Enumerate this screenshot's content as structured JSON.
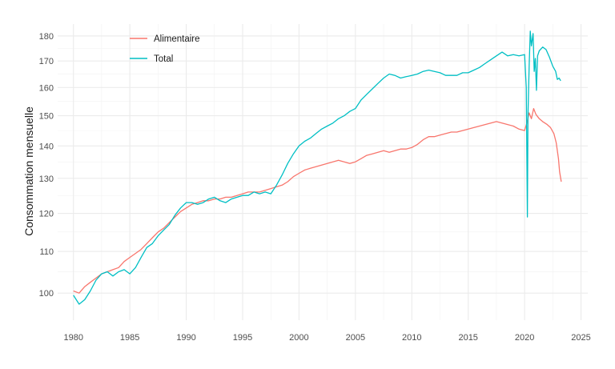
{
  "chart_data": {
    "type": "line",
    "title": "",
    "xlabel": "",
    "ylabel": "Consommation mensuelle",
    "y_scale": "log",
    "xlim": [
      1978.6,
      2025.6
    ],
    "ylim": [
      94,
      185
    ],
    "x_ticks": [
      1980,
      1985,
      1990,
      1995,
      2000,
      2005,
      2010,
      2015,
      2020,
      2025
    ],
    "y_ticks": [
      100,
      110,
      120,
      130,
      140,
      150,
      160,
      170,
      180
    ],
    "grid": true,
    "legend_position": "top-left",
    "series": [
      {
        "name": "Alimentaire",
        "color": "#F8766D",
        "points": [
          [
            1980.0,
            100.5
          ],
          [
            1980.5,
            100.0
          ],
          [
            1981.0,
            101.5
          ],
          [
            1981.5,
            102.5
          ],
          [
            1982.0,
            103.5
          ],
          [
            1982.5,
            104.5
          ],
          [
            1983.0,
            105.0
          ],
          [
            1983.5,
            105.5
          ],
          [
            1984.0,
            106.0
          ],
          [
            1984.5,
            107.5
          ],
          [
            1985.0,
            108.5
          ],
          [
            1985.5,
            109.5
          ],
          [
            1986.0,
            110.5
          ],
          [
            1986.5,
            112.0
          ],
          [
            1987.0,
            113.5
          ],
          [
            1987.5,
            115.0
          ],
          [
            1988.0,
            116.0
          ],
          [
            1988.5,
            117.5
          ],
          [
            1989.0,
            119.0
          ],
          [
            1989.5,
            120.5
          ],
          [
            1990.0,
            121.5
          ],
          [
            1990.5,
            122.5
          ],
          [
            1991.0,
            123.0
          ],
          [
            1991.5,
            123.5
          ],
          [
            1992.0,
            123.5
          ],
          [
            1992.5,
            124.0
          ],
          [
            1993.0,
            124.0
          ],
          [
            1993.5,
            124.5
          ],
          [
            1994.0,
            124.5
          ],
          [
            1994.5,
            125.0
          ],
          [
            1995.0,
            125.5
          ],
          [
            1995.5,
            126.0
          ],
          [
            1996.0,
            126.0
          ],
          [
            1996.5,
            126.0
          ],
          [
            1997.0,
            126.5
          ],
          [
            1997.5,
            127.0
          ],
          [
            1998.0,
            127.5
          ],
          [
            1998.5,
            128.0
          ],
          [
            1999.0,
            129.0
          ],
          [
            1999.5,
            130.5
          ],
          [
            2000.0,
            131.5
          ],
          [
            2000.5,
            132.5
          ],
          [
            2001.0,
            133.0
          ],
          [
            2001.5,
            133.5
          ],
          [
            2002.0,
            134.0
          ],
          [
            2002.5,
            134.5
          ],
          [
            2003.0,
            135.0
          ],
          [
            2003.5,
            135.5
          ],
          [
            2004.0,
            135.0
          ],
          [
            2004.5,
            134.5
          ],
          [
            2005.0,
            135.0
          ],
          [
            2005.5,
            136.0
          ],
          [
            2006.0,
            137.0
          ],
          [
            2006.5,
            137.5
          ],
          [
            2007.0,
            138.0
          ],
          [
            2007.5,
            138.5
          ],
          [
            2008.0,
            138.0
          ],
          [
            2008.5,
            138.5
          ],
          [
            2009.0,
            139.0
          ],
          [
            2009.5,
            139.0
          ],
          [
            2010.0,
            139.5
          ],
          [
            2010.5,
            140.5
          ],
          [
            2011.0,
            142.0
          ],
          [
            2011.5,
            143.0
          ],
          [
            2012.0,
            143.0
          ],
          [
            2012.5,
            143.5
          ],
          [
            2013.0,
            144.0
          ],
          [
            2013.5,
            144.5
          ],
          [
            2014.0,
            144.5
          ],
          [
            2014.5,
            145.0
          ],
          [
            2015.0,
            145.5
          ],
          [
            2015.5,
            146.0
          ],
          [
            2016.0,
            146.5
          ],
          [
            2016.5,
            147.0
          ],
          [
            2017.0,
            147.5
          ],
          [
            2017.5,
            148.0
          ],
          [
            2018.0,
            147.5
          ],
          [
            2018.5,
            147.0
          ],
          [
            2019.0,
            146.5
          ],
          [
            2019.5,
            145.5
          ],
          [
            2020.0,
            145.0
          ],
          [
            2020.2,
            147.5
          ],
          [
            2020.4,
            151.0
          ],
          [
            2020.6,
            149.0
          ],
          [
            2020.8,
            152.5
          ],
          [
            2021.0,
            150.5
          ],
          [
            2021.3,
            149.0
          ],
          [
            2021.6,
            148.0
          ],
          [
            2022.0,
            147.0
          ],
          [
            2022.3,
            146.0
          ],
          [
            2022.6,
            144.0
          ],
          [
            2022.8,
            141.0
          ],
          [
            2023.0,
            136.0
          ],
          [
            2023.1,
            132.0
          ],
          [
            2023.25,
            129.0
          ]
        ]
      },
      {
        "name": "Total",
        "color": "#00BFC4",
        "points": [
          [
            1980.0,
            99.5
          ],
          [
            1980.5,
            97.5
          ],
          [
            1981.0,
            98.5
          ],
          [
            1981.5,
            100.5
          ],
          [
            1982.0,
            103.0
          ],
          [
            1982.5,
            104.5
          ],
          [
            1983.0,
            105.0
          ],
          [
            1983.5,
            104.0
          ],
          [
            1984.0,
            105.0
          ],
          [
            1984.5,
            105.5
          ],
          [
            1985.0,
            104.5
          ],
          [
            1985.5,
            106.0
          ],
          [
            1986.0,
            108.5
          ],
          [
            1986.5,
            111.0
          ],
          [
            1987.0,
            112.0
          ],
          [
            1987.5,
            114.0
          ],
          [
            1988.0,
            115.5
          ],
          [
            1988.5,
            117.0
          ],
          [
            1989.0,
            119.5
          ],
          [
            1989.5,
            121.5
          ],
          [
            1990.0,
            123.0
          ],
          [
            1990.5,
            123.0
          ],
          [
            1991.0,
            122.5
          ],
          [
            1991.5,
            123.0
          ],
          [
            1992.0,
            124.0
          ],
          [
            1992.5,
            124.5
          ],
          [
            1993.0,
            123.5
          ],
          [
            1993.5,
            123.0
          ],
          [
            1994.0,
            124.0
          ],
          [
            1994.5,
            124.5
          ],
          [
            1995.0,
            125.0
          ],
          [
            1995.5,
            125.0
          ],
          [
            1996.0,
            126.0
          ],
          [
            1996.5,
            125.5
          ],
          [
            1997.0,
            126.0
          ],
          [
            1997.5,
            125.5
          ],
          [
            1998.0,
            128.0
          ],
          [
            1998.5,
            131.0
          ],
          [
            1999.0,
            134.5
          ],
          [
            1999.5,
            137.5
          ],
          [
            2000.0,
            140.0
          ],
          [
            2000.5,
            141.5
          ],
          [
            2001.0,
            142.5
          ],
          [
            2001.5,
            144.0
          ],
          [
            2002.0,
            145.5
          ],
          [
            2002.5,
            146.5
          ],
          [
            2003.0,
            147.5
          ],
          [
            2003.5,
            149.0
          ],
          [
            2004.0,
            150.0
          ],
          [
            2004.5,
            151.5
          ],
          [
            2005.0,
            152.5
          ],
          [
            2005.5,
            155.5
          ],
          [
            2006.0,
            157.5
          ],
          [
            2006.5,
            159.5
          ],
          [
            2007.0,
            161.5
          ],
          [
            2007.5,
            163.5
          ],
          [
            2008.0,
            165.0
          ],
          [
            2008.5,
            164.5
          ],
          [
            2009.0,
            163.5
          ],
          [
            2009.5,
            164.0
          ],
          [
            2010.0,
            164.5
          ],
          [
            2010.5,
            165.0
          ],
          [
            2011.0,
            166.0
          ],
          [
            2011.5,
            166.5
          ],
          [
            2012.0,
            166.0
          ],
          [
            2012.5,
            165.5
          ],
          [
            2013.0,
            164.5
          ],
          [
            2013.5,
            164.5
          ],
          [
            2014.0,
            164.5
          ],
          [
            2014.5,
            165.5
          ],
          [
            2015.0,
            165.5
          ],
          [
            2015.5,
            166.5
          ],
          [
            2016.0,
            167.5
          ],
          [
            2016.5,
            169.0
          ],
          [
            2017.0,
            170.5
          ],
          [
            2017.5,
            172.0
          ],
          [
            2018.0,
            173.5
          ],
          [
            2018.5,
            172.0
          ],
          [
            2019.0,
            172.5
          ],
          [
            2019.5,
            172.0
          ],
          [
            2020.0,
            172.5
          ],
          [
            2020.15,
            160.0
          ],
          [
            2020.25,
            119.0
          ],
          [
            2020.3,
            150.0
          ],
          [
            2020.4,
            168.0
          ],
          [
            2020.5,
            182.0
          ],
          [
            2020.6,
            176.0
          ],
          [
            2020.75,
            181.0
          ],
          [
            2020.85,
            166.0
          ],
          [
            2020.95,
            171.0
          ],
          [
            2021.05,
            159.0
          ],
          [
            2021.15,
            172.0
          ],
          [
            2021.3,
            174.0
          ],
          [
            2021.6,
            175.5
          ],
          [
            2021.9,
            174.5
          ],
          [
            2022.2,
            171.5
          ],
          [
            2022.5,
            168.0
          ],
          [
            2022.75,
            166.0
          ],
          [
            2022.9,
            163.0
          ],
          [
            2023.05,
            163.5
          ],
          [
            2023.2,
            162.5
          ]
        ]
      }
    ]
  }
}
